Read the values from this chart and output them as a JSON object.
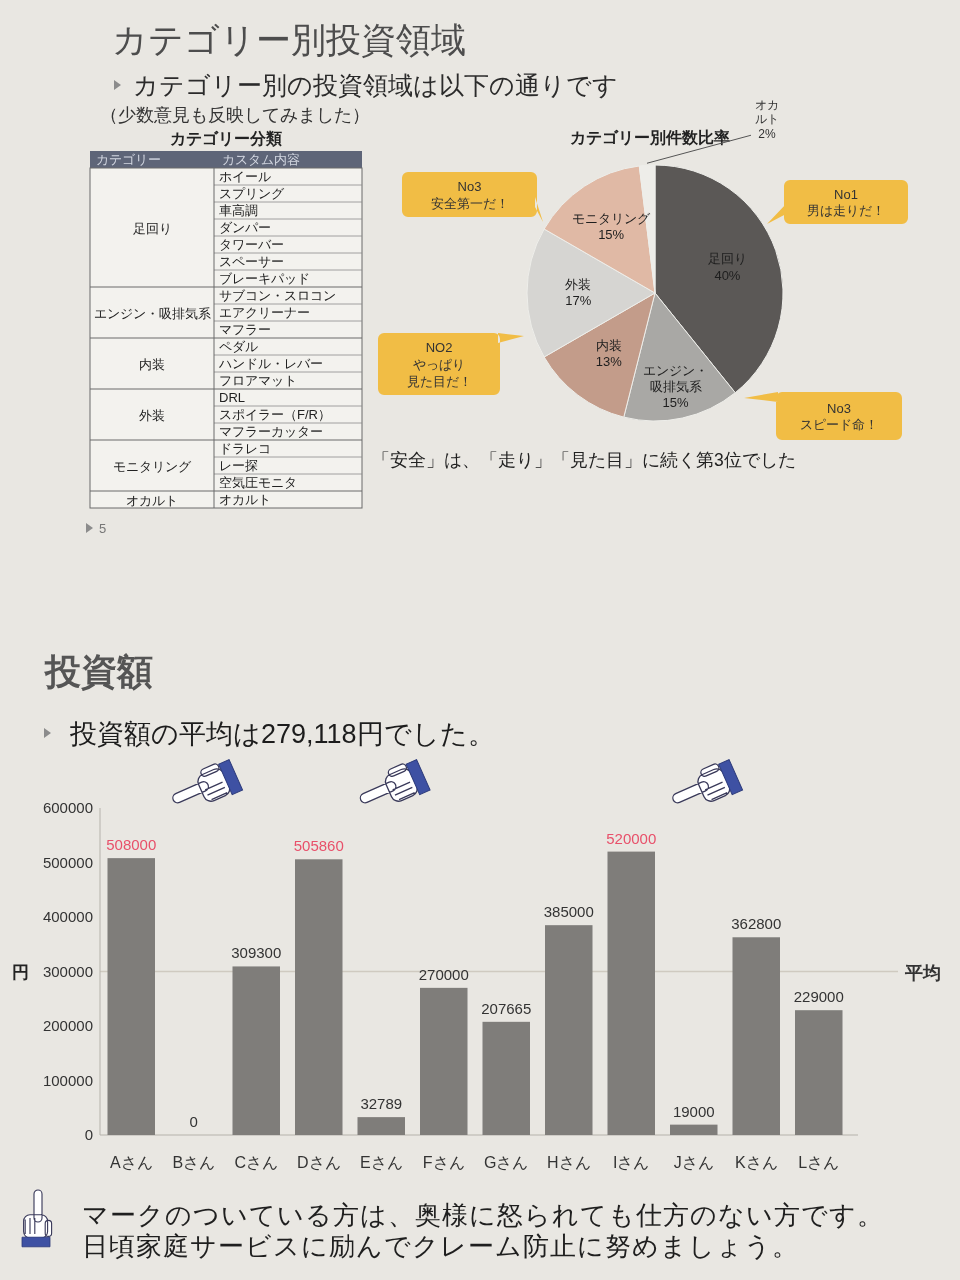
{
  "chart_data": [
    {
      "type": "other",
      "title": "カテゴリー別投資領域",
      "subtitle": "カテゴリー別の投資領域は以下の通りです",
      "annotations": [
        "（少数意見も反映してみました）",
        "カテゴリー分類",
        "カテゴリー",
        "カスタム内容",
        "足回り",
        "ホイール",
        "スプリング",
        "車高調",
        "ダンパー",
        "タワーバー",
        "スペーサー",
        "ブレーキパッド",
        "エンジン・吸排気系",
        "サブコン・スロコン",
        "エアクリーナー",
        "マフラー",
        "内装",
        "ペダル",
        "ハンドル・レバー",
        "フロアマット",
        "外装",
        "DRL",
        "スポイラー（F/R）",
        "マフラーカッター",
        "モニタリング",
        "ドラレコ",
        "レー探",
        "空気圧モニタ",
        "オカルト",
        "オカルト",
        "5"
      ]
    },
    {
      "type": "pie",
      "title": "カテゴリー別件数比率",
      "categories": [
        "足回り",
        "エンジン・吸排気系",
        "内装",
        "外装",
        "モニタリング",
        "オカルト"
      ],
      "values": [
        40,
        15,
        13,
        17,
        15,
        2
      ],
      "value_labels": [
        "40%",
        "15%",
        "13%",
        "17%",
        "15%",
        "2%"
      ],
      "colors": [
        "#5b5856",
        "#a9a8a5",
        "#c39c8a",
        "#d6d5d2",
        "#e0b9a5",
        "#eeede9"
      ],
      "annotations": [
        "No3\n安全第一だ！",
        "No1\n男は走りだ！",
        "NO2\nやっぱり見た目だ！",
        "No3\nスピード命！",
        "「安全」は、「走り」「見た目」に続く第3位でした"
      ]
    },
    {
      "type": "bar",
      "title": "投資額",
      "subtitle": "投資額の平均は279,118円でした。",
      "ylabel": "円",
      "categories": [
        "Aさん",
        "Bさん",
        "Cさん",
        "Dさん",
        "Eさん",
        "Fさん",
        "Gさん",
        "Hさん",
        "Iさん",
        "Jさん",
        "Kさん",
        "Lさん"
      ],
      "values": [
        508000,
        0,
        309300,
        505860,
        32789,
        270000,
        207665,
        385000,
        520000,
        19000,
        362800,
        229000
      ],
      "color": "#7f7d7a",
      "value_labels": [
        null,
        "0",
        "309300",
        null,
        "32789",
        "270000",
        "207665",
        "385000",
        null,
        "19000",
        "362800",
        "229000"
      ],
      "ylim": [
        0,
        600000
      ],
      "yticks": [
        0,
        100000,
        200000,
        300000,
        400000,
        500000,
        600000
      ],
      "ref_lines": [
        {
          "axis": "y",
          "value": 300000,
          "label": "平均",
          "color": "#cfcac0"
        }
      ],
      "annotations": [
        {
          "text": "508000",
          "x": "Aさん",
          "y": 508000
        },
        {
          "text": "505860",
          "x": "Dさん",
          "y": 505860
        },
        {
          "text": "520000",
          "x": "Iさん",
          "y": 520000
        },
        "マークのついている方は、奥様に怒られても仕方のない方です。",
        "日頃家庭サービスに励んでクレーム防止に努めましょう。"
      ]
    }
  ]
}
